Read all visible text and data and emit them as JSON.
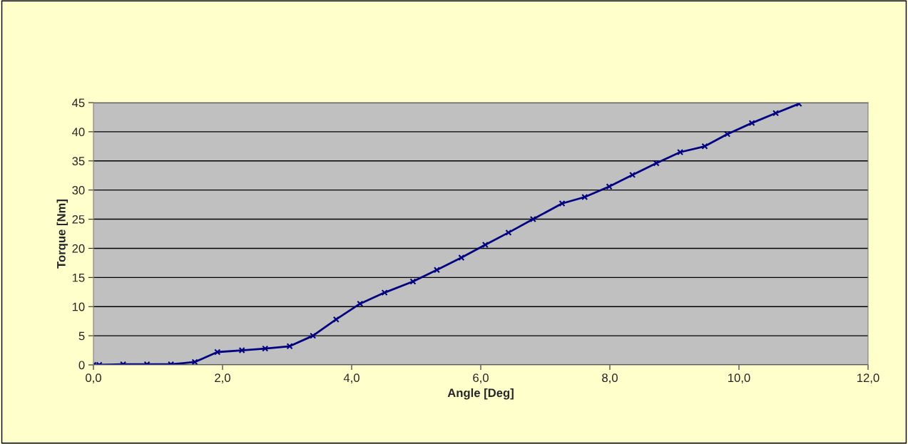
{
  "chart_data": {
    "type": "line",
    "xlabel": "Angle [Deg]",
    "ylabel": "Torque [Nm]",
    "series": [
      {
        "color": "#000080",
        "x": [
          0,
          0.09,
          0.46,
          0.83,
          1.2,
          1.57,
          1.92,
          2.3,
          2.66,
          3.04,
          3.4,
          3.76,
          4.13,
          4.51,
          4.95,
          5.32,
          5.7,
          6.07,
          6.43,
          6.81,
          7.26,
          7.61,
          7.99,
          8.35,
          8.72,
          9.09,
          9.47,
          9.82,
          10.2,
          10.57,
          10.93
        ],
        "values": [
          0,
          0,
          0.1,
          0.1,
          0.1,
          0.5,
          2.2,
          2.5,
          2.8,
          3.2,
          5.0,
          7.8,
          10.5,
          12.4,
          14.3,
          16.3,
          18.4,
          20.6,
          22.7,
          25.0,
          27.7,
          28.8,
          30.6,
          32.6,
          34.6,
          36.5,
          37.5,
          39.6,
          41.5,
          43.2,
          44.8
        ]
      }
    ],
    "xlim": [
      0,
      12
    ],
    "xticks": [
      {
        "value": 0,
        "label": "0,0"
      },
      {
        "value": 2,
        "label": "2,0"
      },
      {
        "value": 4,
        "label": "4,0"
      },
      {
        "value": 6,
        "label": "6,0"
      },
      {
        "value": 8,
        "label": "8,0"
      },
      {
        "value": 10,
        "label": "10,0"
      },
      {
        "value": 12,
        "label": "12,0"
      }
    ],
    "ylim": [
      0,
      45
    ],
    "yticks": [
      0,
      5,
      10,
      15,
      20,
      25,
      30,
      35,
      40,
      45
    ],
    "grid": "y",
    "marker": "cross",
    "line_style": "solid",
    "legend": false
  }
}
